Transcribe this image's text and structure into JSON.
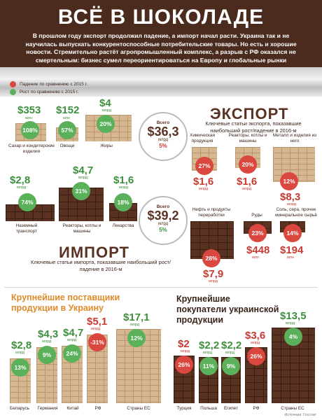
{
  "header": {
    "title": "ВСЁ В ШОКОЛАДЕ",
    "subtitle": "В прошлом году экспорт продолжил падение, а импорт начал расти. Украина так и не научилась выпускать конкурентоспособные потребительские товары. Но есть и хорошие новости. Стремительно растёт агропромышленный комплекс, а разрыв с РФ оказался не смертельным: бизнес сумел переориентироваться на Европу и глобальные рынки"
  },
  "legend": {
    "fall": "Падение по сравнению с 2015 г.",
    "growth": "Рост по сравнению с 2015 г."
  },
  "export": {
    "title": "ЭКСПОРТ",
    "subtitle": "Ключевые статьи экспорта, показавшие наибольший рост/падение в 2016-м",
    "total_label": "Всего",
    "total_value": "$36,3",
    "total_unit": "млрд",
    "total_change": "5%",
    "items": [
      {
        "value": "$353",
        "unit": "млн",
        "change": "108%",
        "label": "Сахар и кондитерские изделия",
        "trend": "up"
      },
      {
        "value": "$152",
        "unit": "млн",
        "change": "57%",
        "label": "Овощи",
        "trend": "up"
      },
      {
        "value": "$4",
        "unit": "млрд",
        "change": "20%",
        "label": "Жиры",
        "trend": "up"
      },
      {
        "value": "$1,6",
        "unit": "млрд",
        "change": "27%",
        "label": "Химическая продукция",
        "trend": "down"
      },
      {
        "value": "$1,6",
        "unit": "млрд",
        "change": "20%",
        "label": "Реакторы, котлы и машины",
        "trend": "down"
      },
      {
        "value": "$8,3",
        "unit": "млрд",
        "change": "12%",
        "label": "Металл и изделия из него",
        "trend": "down"
      }
    ]
  },
  "import": {
    "title": "ИМПОРТ",
    "subtitle": "Ключевые статьи импорта, показавшие наибольший рост/падение в 2016-м",
    "total_label": "Всего",
    "total_value": "$39,2",
    "total_unit": "млрд",
    "total_change": "5%",
    "items": [
      {
        "value": "$2,8",
        "unit": "млрд",
        "change": "74%",
        "label": "Наземный транспорт",
        "trend": "up"
      },
      {
        "value": "$4,7",
        "unit": "млрд",
        "change": "31%",
        "label": "Реакторы, котлы и машины",
        "trend": "up"
      },
      {
        "value": "$1,6",
        "unit": "млрд",
        "change": "18%",
        "label": "Лекарства",
        "trend": "up"
      },
      {
        "value": "$7,9",
        "unit": "млрд",
        "change": "28%",
        "label": "Нефть и продукты переработки",
        "trend": "down"
      },
      {
        "value": "$448",
        "unit": "млн",
        "change": "23%",
        "label": "Руды",
        "trend": "down"
      },
      {
        "value": "$194",
        "unit": "млн",
        "change": "14%",
        "label": "Соль, сера, прочее минеральное сырьё",
        "trend": "down"
      }
    ]
  },
  "suppliers": {
    "title": "Крупнейшие поставщики продукции в Украину",
    "items": [
      {
        "value": "$2,8",
        "unit": "млрд",
        "change": "13%",
        "label": "Беларусь",
        "trend": "up"
      },
      {
        "value": "$4,3",
        "unit": "млрд",
        "change": "9%",
        "label": "Германия",
        "trend": "up"
      },
      {
        "value": "$4,7",
        "unit": "млрд",
        "change": "24%",
        "label": "Китай",
        "trend": "up"
      },
      {
        "value": "$5,1",
        "unit": "млрд",
        "change": "-31%",
        "label": "РФ",
        "trend": "down"
      },
      {
        "value": "$17,1",
        "unit": "млрд",
        "change": "12%",
        "label": "Страны ЕС",
        "trend": "up"
      }
    ]
  },
  "buyers": {
    "title": "Крупнейшие покупатели украинской продукции",
    "items": [
      {
        "value": "$2",
        "unit": "млрд",
        "change": "26%",
        "label": "Турция",
        "trend": "down"
      },
      {
        "value": "$2,2",
        "unit": "млрд",
        "change": "11%",
        "label": "Польша",
        "trend": "up"
      },
      {
        "value": "$2,2",
        "unit": "млрд",
        "change": "9%",
        "label": "Египет",
        "trend": "up"
      },
      {
        "value": "$3,6",
        "unit": "млрд",
        "change": "26%",
        "label": "РФ",
        "trend": "down"
      },
      {
        "value": "$13,5",
        "unit": "млрд",
        "change": "4%",
        "label": "Страны ЕС",
        "trend": "up"
      }
    ]
  },
  "source": "Источник: Госстат",
  "colors": {
    "header_bg": "#4a2b1e",
    "light_chocolate": "#d6b792",
    "dark_chocolate": "#5a3222",
    "growth": "#5bb05a",
    "fall": "#d9473e",
    "section_title_orange": "#e08a2a"
  }
}
